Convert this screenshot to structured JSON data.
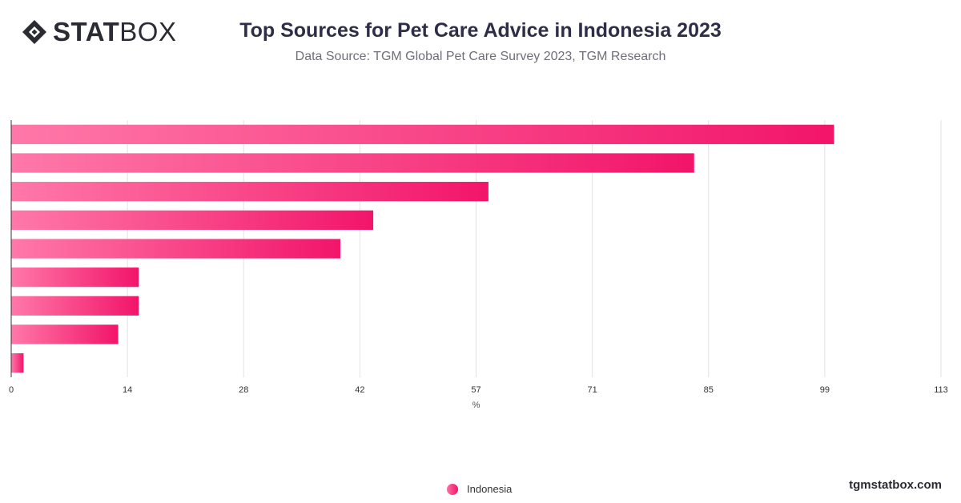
{
  "brand": {
    "logo_bold": "STAT",
    "logo_light": "BOX",
    "site": "tgmstatbox.com"
  },
  "header": {
    "title": "Top Sources for Pet Care Advice in Indonesia 2023",
    "subtitle": "Data Source: TGM Global Pet Care Survey 2023, TGM Research"
  },
  "chart_data": {
    "type": "bar",
    "orientation": "horizontal",
    "categories": [
      "",
      "",
      "",
      "",
      "",
      "",
      "",
      "",
      ""
    ],
    "series": [
      {
        "name": "Indonesia",
        "values": [
          100,
          83,
          58,
          44,
          40,
          15.5,
          15.5,
          13,
          1.5
        ]
      }
    ],
    "xlabel": "%",
    "ylabel": "",
    "xlim": [
      0,
      113
    ],
    "ticks": [
      "0",
      "14",
      "28",
      "42",
      "57",
      "71",
      "85",
      "99",
      "113"
    ],
    "grid": true,
    "legend_position": "bottom-center",
    "colors": {
      "bar_start": "#ff78a8",
      "bar_end": "#f2156a",
      "grid": "#e2e2e2",
      "axis": "#333333"
    }
  }
}
